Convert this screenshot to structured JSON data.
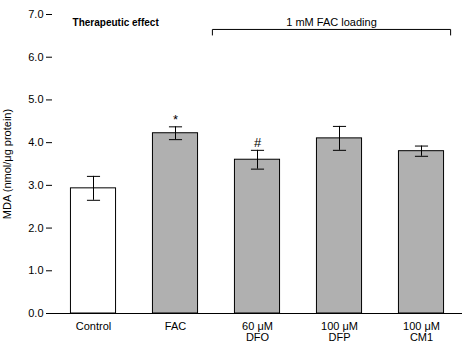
{
  "chart_data": {
    "type": "bar",
    "categories": [
      "Control",
      "FAC",
      "60 μM\nDFO",
      "100 μM\nDFP",
      "100 μM\nCM1"
    ],
    "values": [
      2.93,
      4.22,
      3.6,
      4.1,
      3.8
    ],
    "errors": [
      0.28,
      0.15,
      0.22,
      0.28,
      0.12
    ],
    "colors": [
      "white",
      "#b0b0b0",
      "#b0b0b0",
      "#b0b0b0",
      "#b0b0b0"
    ],
    "ylabel": "MDA (nmol/μg protein)",
    "ylim": [
      0,
      7
    ],
    "yticks": [
      0,
      1,
      2,
      3,
      4,
      5,
      6,
      7
    ],
    "grid": false,
    "annotations": [
      {
        "text": "*",
        "category": "FAC"
      },
      {
        "text": "#",
        "category": "60 μM\nDFO"
      },
      {
        "text": "Therapeutic effect"
      },
      {
        "text": "1 mM FAC loading",
        "categories": [
          "FAC",
          "100 μM\nCM1"
        ]
      }
    ]
  }
}
